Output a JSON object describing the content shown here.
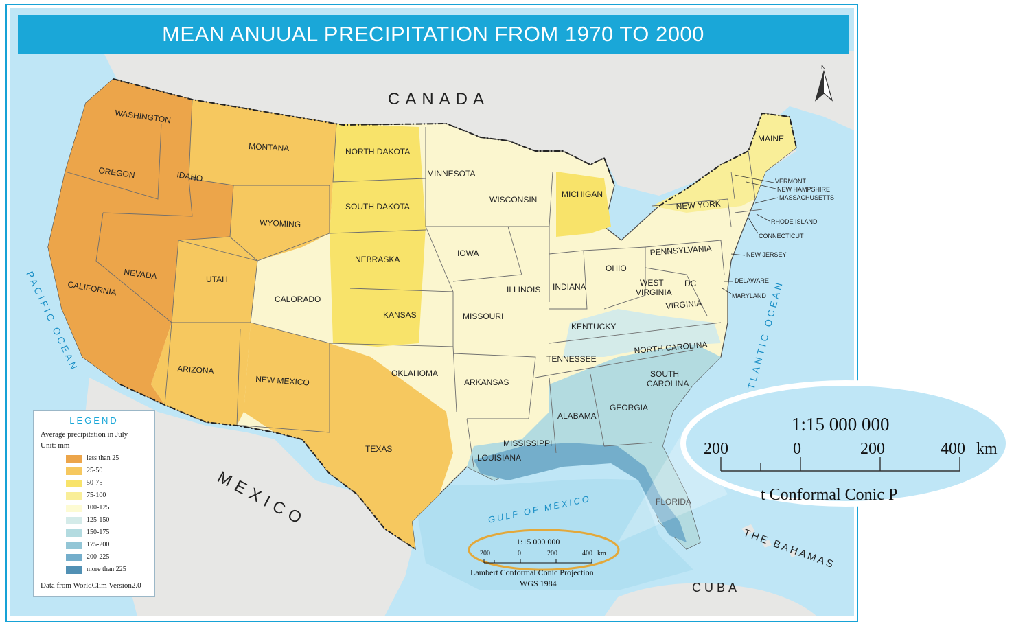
{
  "title": "MEAN ANUUAL PRECIPITATION FROM 1970 TO 2000",
  "countries": {
    "canada": "CANADA",
    "mexico": "MEXICO",
    "cuba": "CUBA",
    "bahamas": "THE BAHAMAS"
  },
  "water": {
    "pacific": "PACIFIC OCEAN",
    "atlantic": "ATLANTIC OCEAN",
    "gulf": "GULF OF MEXICO"
  },
  "states": {
    "washington": "WASHINGTON",
    "oregon": "OREGON",
    "california": "CALIFORNIA",
    "nevada": "NEVADA",
    "idaho": "IDAHO",
    "montana": "MONTANA",
    "wyoming": "WYOMING",
    "utah": "UTAH",
    "arizona": "ARIZONA",
    "colorado": "CALORADO",
    "new_mexico": "NEW MEXICO",
    "north_dakota": "NORTH DAKOTA",
    "south_dakota": "SOUTH DAKOTA",
    "nebraska": "NEBRASKA",
    "kansas": "KANSAS",
    "oklahoma": "OKLAHOMA",
    "texas": "TEXAS",
    "minnesota": "MINNESOTA",
    "iowa": "IOWA",
    "missouri": "MISSOURI",
    "arkansas": "ARKANSAS",
    "louisiana": "LOUISIANA",
    "wisconsin": "WISCONSIN",
    "illinois": "ILLINOIS",
    "michigan": "MICHIGAN",
    "indiana": "INDIANA",
    "ohio": "OHIO",
    "kentucky": "KENTUCKY",
    "tennessee": "TENNESSEE",
    "mississippi": "MISSISSIPPI",
    "alabama": "ALABAMA",
    "georgia": "GEORGIA",
    "florida": "FLORIDA",
    "south_carolina_1": "SOUTH",
    "south_carolina_2": "CAROLINA",
    "north_carolina": "NORTH CAROLINA",
    "virginia": "VIRGINIA",
    "west_virginia_1": "WEST",
    "west_virginia_2": "VIRGINIA",
    "dc": "DC",
    "pennsylvania": "PENNSYLVANIA",
    "new_york": "NEW YORK",
    "maine": "MAINE",
    "vermont": "VERMONT",
    "new_hampshire": "NEW HAMPSHIRE",
    "massachusetts": "MASSACHUSETTS",
    "rhode_island": "RHODE ISLAND",
    "connecticut": "CONNECTICUT",
    "new_jersey": "NEW JERSEY",
    "delaware": "DELAWARE",
    "maryland": "MARYLAND"
  },
  "legend": {
    "title": "LEGEND",
    "subtitle": "Average precipitation in July",
    "unit": "Unit: mm",
    "source": "Data from WorldClim Version2.0",
    "classes": [
      {
        "label": "less than 25",
        "color": "#eca54a"
      },
      {
        "label": "25-50",
        "color": "#f6c85f"
      },
      {
        "label": "50-75",
        "color": "#f8e36a"
      },
      {
        "label": "75-100",
        "color": "#f9ee98"
      },
      {
        "label": "100-125",
        "color": "#fdfbd3"
      },
      {
        "label": "125-150",
        "color": "#d4ebe9"
      },
      {
        "label": "150-175",
        "color": "#b3dbe0"
      },
      {
        "label": "175-200",
        "color": "#93c6d6"
      },
      {
        "label": "200-225",
        "color": "#74aecb"
      },
      {
        "label": "more than 225",
        "color": "#5190b4"
      }
    ]
  },
  "scale": {
    "ratio": "1:15 000 000",
    "ticks": [
      "200",
      "0",
      "200",
      "400"
    ],
    "unit": "km",
    "projection": "Lambert Conformal Conic Projection",
    "datum": "WGS 1984",
    "zoom_partial": "t Conformal Conic P"
  },
  "north_arrow": "N",
  "colors": {
    "title_bar": "#1aa7d8",
    "ocean": "#bfe6f6",
    "land_neighbor": "#e7e7e5",
    "highlight_ring": "#e3a83a"
  }
}
